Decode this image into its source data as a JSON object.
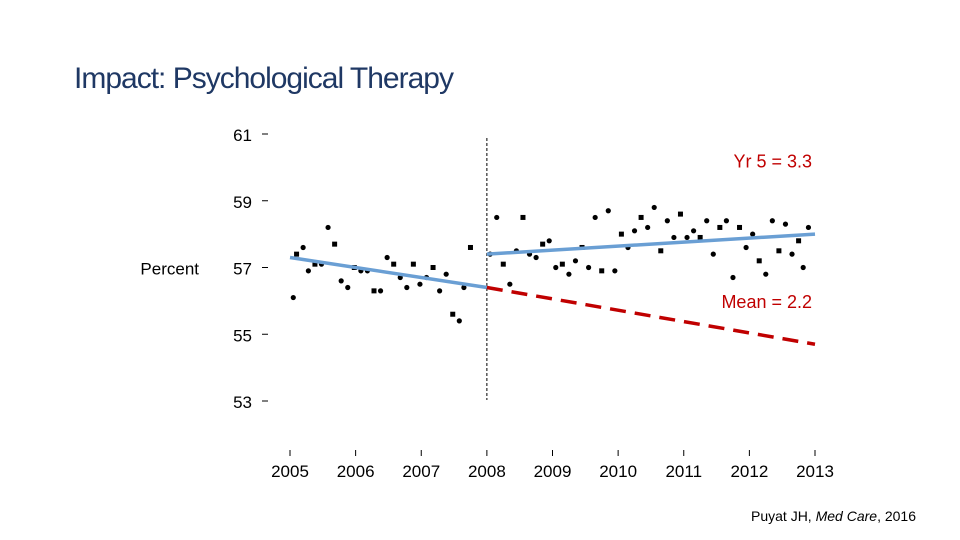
{
  "slide": {
    "title": "Impact: Psychological Therapy"
  },
  "citation": {
    "author": "Puyat JH, ",
    "journal": "Med Care",
    "year": ", 2016"
  },
  "colors": {
    "trend": "#6a9fd4",
    "counterfactual": "#c00000",
    "annotation": "#c00000",
    "points": "#000000"
  },
  "chart_data": {
    "type": "scatter",
    "ylabel": "Percent",
    "ylim": [
      53,
      61
    ],
    "yticks": [
      61,
      59,
      57,
      55,
      53
    ],
    "xlim": [
      2005,
      2013
    ],
    "xticks": [
      "2005",
      "2006",
      "2007",
      "2008",
      "2009",
      "2010",
      "2011",
      "2012",
      "2013"
    ],
    "intervention_year": 2008,
    "series": [
      {
        "points": [
          [
            2005.05,
            56.1
          ],
          [
            2005.1,
            57.4
          ],
          [
            2005.2,
            57.6
          ],
          [
            2005.28,
            56.9
          ],
          [
            2005.38,
            57.1
          ],
          [
            2005.48,
            57.1
          ],
          [
            2005.58,
            58.2
          ],
          [
            2005.68,
            57.7
          ],
          [
            2005.78,
            56.6
          ],
          [
            2005.88,
            56.4
          ],
          [
            2005.98,
            57.0
          ],
          [
            2006.08,
            56.9
          ],
          [
            2006.18,
            56.9
          ],
          [
            2006.28,
            56.3
          ],
          [
            2006.38,
            56.3
          ],
          [
            2006.48,
            57.3
          ],
          [
            2006.58,
            57.1
          ],
          [
            2006.68,
            56.7
          ],
          [
            2006.78,
            56.4
          ],
          [
            2006.88,
            57.1
          ],
          [
            2006.98,
            56.5
          ],
          [
            2007.08,
            56.7
          ],
          [
            2007.18,
            57.0
          ],
          [
            2007.28,
            56.3
          ],
          [
            2007.38,
            56.8
          ],
          [
            2007.48,
            55.6
          ],
          [
            2007.58,
            55.4
          ],
          [
            2007.65,
            56.4
          ],
          [
            2007.75,
            57.6
          ],
          [
            2008.05,
            57.4
          ],
          [
            2008.15,
            58.5
          ],
          [
            2008.25,
            57.1
          ],
          [
            2008.35,
            56.5
          ],
          [
            2008.45,
            57.5
          ],
          [
            2008.55,
            58.5
          ],
          [
            2008.65,
            57.4
          ],
          [
            2008.75,
            57.3
          ],
          [
            2008.85,
            57.7
          ],
          [
            2008.95,
            57.8
          ],
          [
            2009.05,
            57.0
          ],
          [
            2009.15,
            57.1
          ],
          [
            2009.25,
            56.8
          ],
          [
            2009.35,
            57.2
          ],
          [
            2009.45,
            57.6
          ],
          [
            2009.55,
            57.0
          ],
          [
            2009.65,
            58.5
          ],
          [
            2009.75,
            56.9
          ],
          [
            2009.85,
            58.7
          ],
          [
            2009.95,
            56.9
          ],
          [
            2010.05,
            58.0
          ],
          [
            2010.15,
            57.6
          ],
          [
            2010.25,
            58.1
          ],
          [
            2010.35,
            58.5
          ],
          [
            2010.45,
            58.2
          ],
          [
            2010.55,
            58.8
          ],
          [
            2010.65,
            57.5
          ],
          [
            2010.75,
            58.4
          ],
          [
            2010.85,
            57.9
          ],
          [
            2010.95,
            58.6
          ],
          [
            2011.05,
            57.9
          ],
          [
            2011.15,
            58.1
          ],
          [
            2011.25,
            57.9
          ],
          [
            2011.35,
            58.4
          ],
          [
            2011.45,
            57.4
          ],
          [
            2011.55,
            58.2
          ],
          [
            2011.65,
            58.4
          ],
          [
            2011.75,
            56.7
          ],
          [
            2011.85,
            58.2
          ],
          [
            2011.95,
            57.6
          ],
          [
            2012.05,
            58.0
          ],
          [
            2012.15,
            57.2
          ],
          [
            2012.25,
            56.8
          ],
          [
            2012.35,
            58.4
          ],
          [
            2012.45,
            57.5
          ],
          [
            2012.55,
            58.3
          ],
          [
            2012.65,
            57.4
          ],
          [
            2012.75,
            57.8
          ],
          [
            2012.82,
            57.0
          ],
          [
            2012.9,
            58.2
          ]
        ]
      }
    ],
    "trend_lines": [
      {
        "style": "solid",
        "from": [
          2005.0,
          57.3
        ],
        "to": [
          2008.0,
          56.4
        ]
      },
      {
        "style": "solid",
        "from": [
          2008.0,
          57.4
        ],
        "to": [
          2013.0,
          58.0
        ]
      },
      {
        "style": "dashed",
        "from": [
          2008.0,
          56.4
        ],
        "to": [
          2013.0,
          54.7
        ]
      }
    ],
    "annotations": [
      {
        "text": "Yr 5 = 3.3",
        "x": 2013,
        "y": 60.2
      },
      {
        "text": "Mean = 2.2",
        "x": 2013,
        "y": 56.0
      }
    ]
  }
}
